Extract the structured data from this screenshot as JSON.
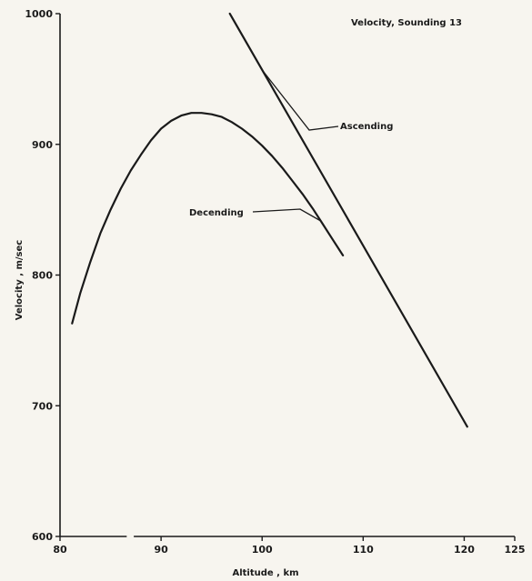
{
  "chart_data": {
    "type": "line",
    "title": "Velocity, Sounding 13",
    "xlabel": "Altitude , km",
    "ylabel": "Velocity , m/sec",
    "xlim": [
      80,
      125
    ],
    "ylim": [
      600,
      1000
    ],
    "xticks": [
      80,
      90,
      100,
      110,
      120,
      125
    ],
    "yticks": [
      600,
      700,
      800,
      900,
      1000
    ],
    "grid": false,
    "series": [
      {
        "name": "Ascending",
        "x": [
          96.8,
          120.3
        ],
        "y": [
          1000,
          684
        ]
      },
      {
        "name": "Decending",
        "x": [
          81.2,
          82.0,
          83.0,
          84.0,
          85.0,
          86.0,
          87.0,
          88.0,
          89.0,
          90.0,
          91.0,
          92.0,
          93.0,
          94.0,
          95.0,
          96.0,
          97.0,
          98.0,
          99.0,
          100.0,
          101.0,
          102.0,
          103.0,
          104.0,
          105.0,
          106.0,
          107.0,
          108.0
        ],
        "y": [
          763,
          786,
          810,
          832,
          850,
          866,
          880,
          892,
          903,
          912,
          918,
          922,
          924,
          924,
          923,
          921,
          917,
          912,
          906,
          899,
          891,
          882,
          872,
          862,
          851,
          839,
          827,
          815
        ]
      }
    ],
    "annotations": [
      {
        "text": "Ascending",
        "target_series": "Ascending"
      },
      {
        "text": "Decending",
        "target_series": "Decending"
      }
    ]
  }
}
